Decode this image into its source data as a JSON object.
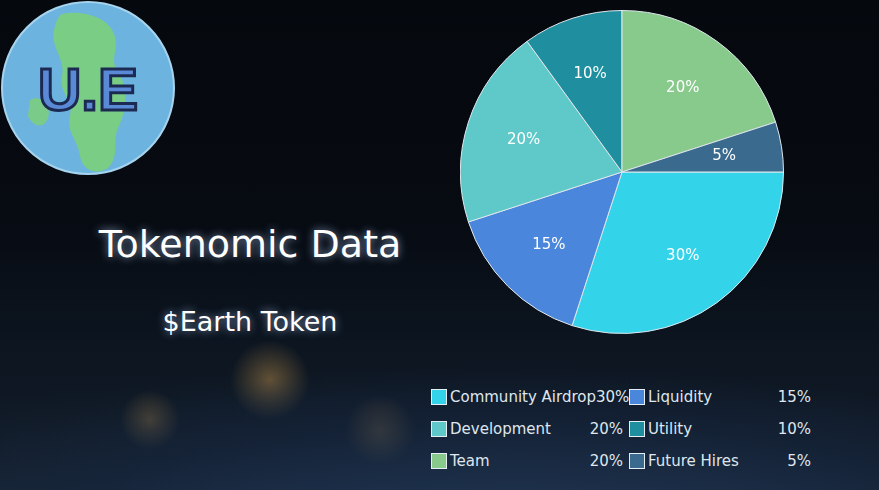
{
  "logo": {
    "text": "U.E"
  },
  "chart_data": {
    "type": "pie",
    "title": "Tokenomic Data",
    "subtitle": "$Earth Token",
    "categories": [
      "Community Airdrop",
      "Liquidity",
      "Development",
      "Utility",
      "Team",
      "Future Hires"
    ],
    "values": [
      30,
      15,
      20,
      10,
      20,
      5
    ],
    "value_labels": [
      "30%",
      "15%",
      "20%",
      "10%",
      "20%",
      "5%"
    ],
    "colors": [
      "#33d3ea",
      "#4a86dc",
      "#5ec9c8",
      "#1f8fa0",
      "#88c98c",
      "#3a6a8e"
    ],
    "data_labels": true,
    "legend": "bottom-right"
  }
}
